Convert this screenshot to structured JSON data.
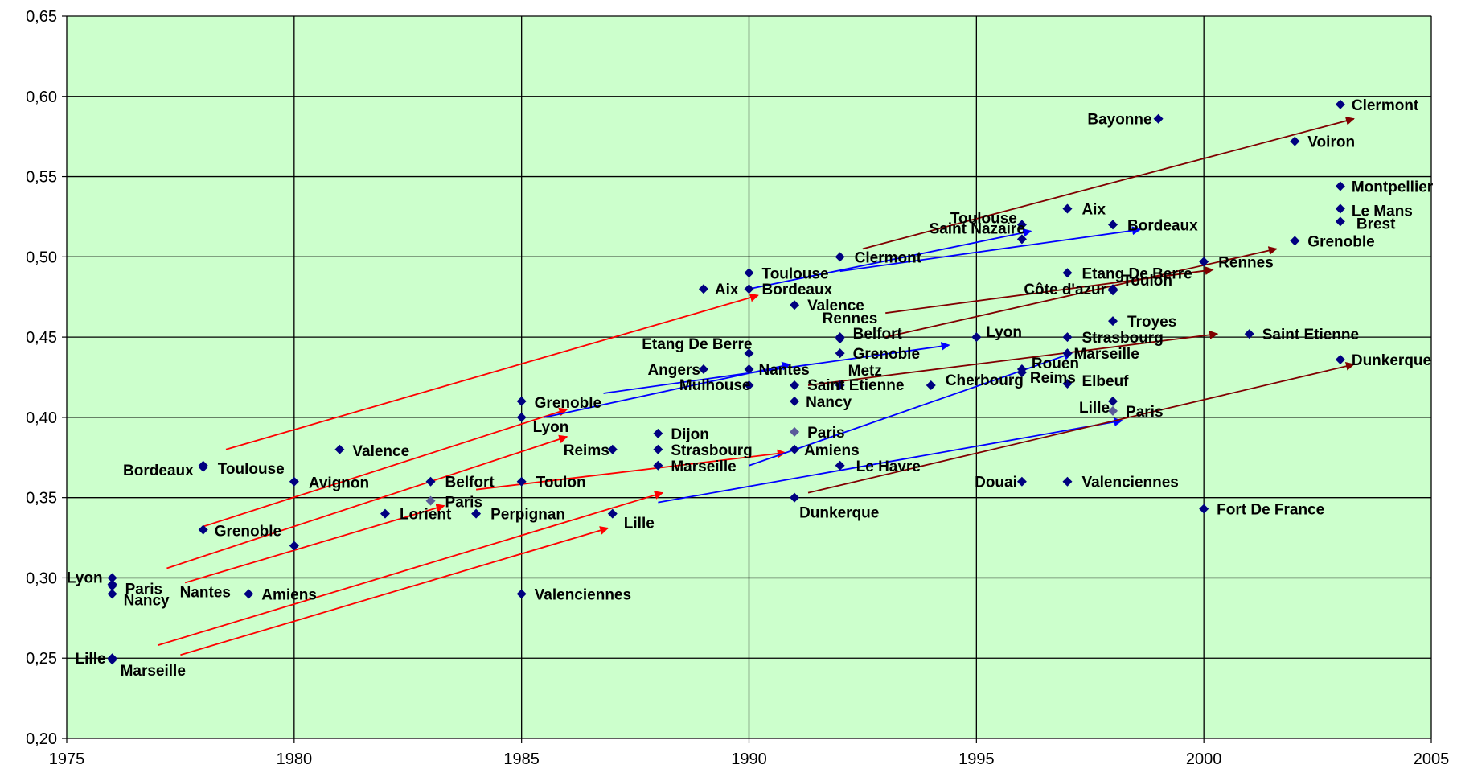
{
  "chart_data": {
    "type": "scatter",
    "title": "",
    "xlabel": "",
    "ylabel": "",
    "xlim": [
      1975,
      2005
    ],
    "ylim": [
      0.2,
      0.65
    ],
    "x_ticks": [
      "1975",
      "1980",
      "1985",
      "1990",
      "1995",
      "2000",
      "2005"
    ],
    "y_ticks": [
      "0,20",
      "0,25",
      "0,30",
      "0,35",
      "0,40",
      "0,45",
      "0,50",
      "0,55",
      "0,60",
      "0,65"
    ],
    "grid": true,
    "legend": "none",
    "colors": {
      "plot_background": "#ccffcc",
      "grid": "#000000",
      "marker": "#000080",
      "marker_alt": "#5a5a9a",
      "red_arrow": "#ff0000",
      "blue_arrow": "#0000ff",
      "darkred_arrow": "#800000"
    },
    "points": [
      {
        "label": "Lille",
        "x": 1976,
        "y": 0.25
      },
      {
        "label": "Marseille",
        "x": 1976,
        "y": 0.249
      },
      {
        "label": "Lyon",
        "x": 1976,
        "y": 0.3
      },
      {
        "label": "Nantes",
        "x": 1976,
        "y": 0.296
      },
      {
        "label": "Paris",
        "x": 1976,
        "y": 0.295
      },
      {
        "label": "Nancy",
        "x": 1976,
        "y": 0.29
      },
      {
        "label": "Bordeaux",
        "x": 1978,
        "y": 0.37
      },
      {
        "label": "Toulouse",
        "x": 1978,
        "y": 0.369
      },
      {
        "label": "Grenoble",
        "x": 1978,
        "y": 0.33
      },
      {
        "label": "Amiens",
        "x": 1979,
        "y": 0.29
      },
      {
        "label": "Avignon",
        "x": 1980,
        "y": 0.36
      },
      {
        "label": "",
        "x": 1980,
        "y": 0.32
      },
      {
        "label": "Valence",
        "x": 1981,
        "y": 0.38
      },
      {
        "label": "Lorient",
        "x": 1982,
        "y": 0.34
      },
      {
        "label": "Belfort",
        "x": 1983,
        "y": 0.36
      },
      {
        "label": "Paris",
        "x": 1983,
        "y": 0.348,
        "alt": true
      },
      {
        "label": "Perpignan",
        "x": 1984,
        "y": 0.34
      },
      {
        "label": "Grenoble",
        "x": 1985,
        "y": 0.41
      },
      {
        "label": "Lyon",
        "x": 1985,
        "y": 0.4
      },
      {
        "label": "Toulon",
        "x": 1985,
        "y": 0.36
      },
      {
        "label": "Valenciennes",
        "x": 1985,
        "y": 0.29
      },
      {
        "label": "Reims",
        "x": 1987,
        "y": 0.38
      },
      {
        "label": "Lille",
        "x": 1987,
        "y": 0.34
      },
      {
        "label": "Dijon",
        "x": 1988,
        "y": 0.39
      },
      {
        "label": "Strasbourg",
        "x": 1988,
        "y": 0.38
      },
      {
        "label": "Marseille",
        "x": 1988,
        "y": 0.37
      },
      {
        "label": "Angers",
        "x": 1989,
        "y": 0.43
      },
      {
        "label": "Aix",
        "x": 1989,
        "y": 0.48
      },
      {
        "label": "Toulouse",
        "x": 1990,
        "y": 0.49
      },
      {
        "label": "Bordeaux",
        "x": 1990,
        "y": 0.48
      },
      {
        "label": "Etang De Berre",
        "x": 1990,
        "y": 0.44
      },
      {
        "label": "Nantes",
        "x": 1990,
        "y": 0.43
      },
      {
        "label": "Mulhouse",
        "x": 1990,
        "y": 0.42
      },
      {
        "label": "Valence",
        "x": 1991,
        "y": 0.47
      },
      {
        "label": "Saint Etienne",
        "x": 1991,
        "y": 0.42
      },
      {
        "label": "Nancy",
        "x": 1991,
        "y": 0.41
      },
      {
        "label": "Paris",
        "x": 1991,
        "y": 0.391,
        "alt": true
      },
      {
        "label": "Amiens",
        "x": 1991,
        "y": 0.38
      },
      {
        "label": "Dunkerque",
        "x": 1991,
        "y": 0.35
      },
      {
        "label": "Clermont",
        "x": 1992,
        "y": 0.5
      },
      {
        "label": "Rennes",
        "x": 1992,
        "y": 0.45
      },
      {
        "label": "Belfort",
        "x": 1992,
        "y": 0.449
      },
      {
        "label": "Grenoble",
        "x": 1992,
        "y": 0.44
      },
      {
        "label": "Metz",
        "x": 1992,
        "y": 0.42
      },
      {
        "label": "Le Havre",
        "x": 1992,
        "y": 0.37
      },
      {
        "label": "Cherbourg",
        "x": 1994,
        "y": 0.42
      },
      {
        "label": "Lyon",
        "x": 1995,
        "y": 0.45
      },
      {
        "label": "Toulouse",
        "x": 1996,
        "y": 0.52
      },
      {
        "label": "Saint Nazaire",
        "x": 1996,
        "y": 0.511
      },
      {
        "label": "Rouen",
        "x": 1996,
        "y": 0.43
      },
      {
        "label": "Reims",
        "x": 1996,
        "y": 0.428
      },
      {
        "label": "Douai",
        "x": 1996,
        "y": 0.36
      },
      {
        "label": "Aix",
        "x": 1997,
        "y": 0.53
      },
      {
        "label": "Etang De Berre",
        "x": 1997,
        "y": 0.49
      },
      {
        "label": "Strasbourg",
        "x": 1997,
        "y": 0.45
      },
      {
        "label": "Marseille",
        "x": 1997,
        "y": 0.44
      },
      {
        "label": "Elbeuf",
        "x": 1997,
        "y": 0.421
      },
      {
        "label": "Valenciennes",
        "x": 1997,
        "y": 0.36
      },
      {
        "label": "Bordeaux",
        "x": 1998,
        "y": 0.52
      },
      {
        "label": "Côte d'azur",
        "x": 1998,
        "y": 0.48
      },
      {
        "label": "Toulon",
        "x": 1998,
        "y": 0.479
      },
      {
        "label": "Troyes",
        "x": 1998,
        "y": 0.46
      },
      {
        "label": "Lille",
        "x": 1998,
        "y": 0.41
      },
      {
        "label": "Paris",
        "x": 1998,
        "y": 0.404,
        "alt": true
      },
      {
        "label": "Bayonne",
        "x": 1999,
        "y": 0.586
      },
      {
        "label": "Rennes",
        "x": 2000,
        "y": 0.497
      },
      {
        "label": "Fort De France",
        "x": 2000,
        "y": 0.343
      },
      {
        "label": "Saint Etienne",
        "x": 2001,
        "y": 0.452
      },
      {
        "label": "Voiron",
        "x": 2002,
        "y": 0.572
      },
      {
        "label": "Grenoble",
        "x": 2002,
        "y": 0.51
      },
      {
        "label": "Clermont",
        "x": 2003,
        "y": 0.595
      },
      {
        "label": "Montpellier",
        "x": 2003,
        "y": 0.544
      },
      {
        "label": "Le Mans",
        "x": 2003,
        "y": 0.53
      },
      {
        "label": "Brest",
        "x": 2003,
        "y": 0.522
      },
      {
        "label": "Dunkerque",
        "x": 2003,
        "y": 0.436
      }
    ],
    "arrows": [
      {
        "color": "red",
        "from": [
          1978.5,
          0.38
        ],
        "to": [
          1990.2,
          0.476
        ]
      },
      {
        "color": "red",
        "from": [
          1978.0,
          0.332
        ],
        "to": [
          1986.0,
          0.405
        ]
      },
      {
        "color": "red",
        "from": [
          1977.2,
          0.306
        ],
        "to": [
          1986.0,
          0.388
        ]
      },
      {
        "color": "red",
        "from": [
          1977.6,
          0.297
        ],
        "to": [
          1983.3,
          0.345
        ]
      },
      {
        "color": "red",
        "from": [
          1984.0,
          0.355
        ],
        "to": [
          1990.8,
          0.378
        ]
      },
      {
        "color": "red",
        "from": [
          1977.0,
          0.258
        ],
        "to": [
          1988.1,
          0.353
        ]
      },
      {
        "color": "red",
        "from": [
          1977.5,
          0.252
        ],
        "to": [
          1986.9,
          0.331
        ]
      },
      {
        "color": "blue",
        "from": [
          1985.5,
          0.4
        ],
        "to": [
          1990.9,
          0.433
        ]
      },
      {
        "color": "blue",
        "from": [
          1986.8,
          0.415
        ],
        "to": [
          1994.4,
          0.445
        ]
      },
      {
        "color": "blue",
        "from": [
          1990.0,
          0.48
        ],
        "to": [
          1996.2,
          0.516
        ]
      },
      {
        "color": "blue",
        "from": [
          1992.0,
          0.491
        ],
        "to": [
          1998.6,
          0.517
        ]
      },
      {
        "color": "blue",
        "from": [
          1990.0,
          0.37
        ],
        "to": [
          1997.1,
          0.44
        ]
      },
      {
        "color": "blue",
        "from": [
          1988.0,
          0.347
        ],
        "to": [
          1998.2,
          0.398
        ]
      },
      {
        "color": "darkred",
        "from": [
          1992.5,
          0.505
        ],
        "to": [
          2003.3,
          0.586
        ]
      },
      {
        "color": "darkred",
        "from": [
          1993.0,
          0.465
        ],
        "to": [
          2000.2,
          0.492
        ]
      },
      {
        "color": "darkred",
        "from": [
          1993.0,
          0.45
        ],
        "to": [
          2001.6,
          0.505
        ]
      },
      {
        "color": "darkred",
        "from": [
          1991.3,
          0.42
        ],
        "to": [
          2000.3,
          0.452
        ]
      },
      {
        "color": "darkred",
        "from": [
          1991.3,
          0.353
        ],
        "to": [
          2003.3,
          0.433
        ]
      }
    ]
  }
}
